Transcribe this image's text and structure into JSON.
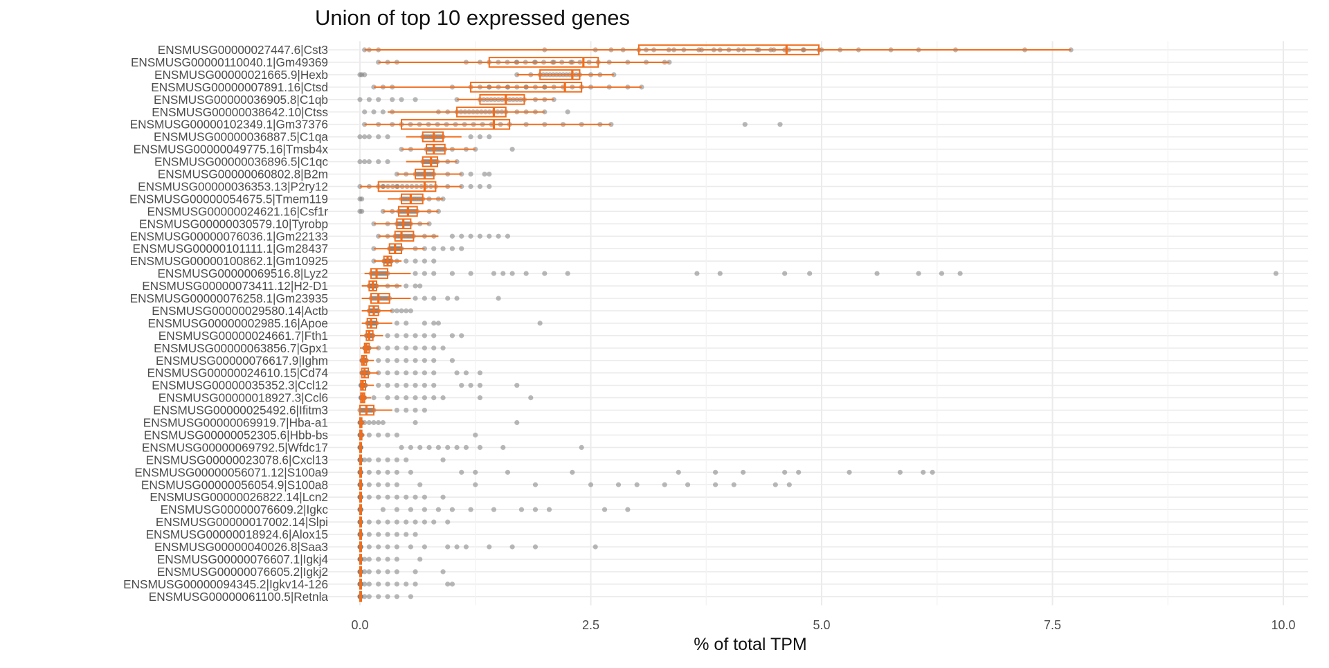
{
  "chart_data": {
    "type": "boxplot-with-points",
    "title": "Union of top 10 expressed genes",
    "xlabel": "% of total TPM",
    "ylabel": "",
    "xlim": [
      -0.45,
      10.3
    ],
    "x_ticks": [
      0.0,
      2.5,
      5.0,
      7.5,
      10.0
    ],
    "x_tick_labels": [
      "0.0",
      "2.5",
      "5.0",
      "7.5",
      "10.0"
    ],
    "orientation": "horizontal",
    "grid": true,
    "colors": {
      "box": "#f26d1b",
      "points": "#7f7f7f",
      "grid": "#ebebeb"
    },
    "genes": [
      {
        "name": "ENSMUSG00000027447.6|Cst3",
        "q1": 3.02,
        "median": 4.62,
        "q3": 4.97,
        "wlo": 0.05,
        "whi": 7.7,
        "out": [
          0.05,
          0.1,
          0.2,
          2.0,
          2.55,
          2.72,
          2.85,
          3.1,
          3.4,
          3.7,
          3.9,
          4.1,
          4.3,
          4.45,
          4.6,
          4.8,
          5.0,
          5.2,
          5.4,
          5.75,
          6.05,
          6.45,
          7.2,
          7.7
        ]
      },
      {
        "name": "ENSMUSG00000110040.1|Gm49369",
        "q1": 1.4,
        "median": 2.42,
        "q3": 2.58,
        "wlo": 0.2,
        "whi": 3.35,
        "out": [
          0.2,
          0.3,
          0.4,
          1.15,
          1.3,
          1.7,
          1.9,
          2.1,
          2.3,
          2.7,
          2.9,
          3.1,
          3.3,
          3.35
        ]
      },
      {
        "name": "ENSMUSG00000021665.9|Hexb",
        "q1": 1.95,
        "median": 2.3,
        "q3": 2.38,
        "wlo": 1.7,
        "whi": 2.75,
        "out": [
          0.0,
          0.02,
          0.05,
          1.7,
          1.85,
          2.5,
          2.6,
          2.75
        ]
      },
      {
        "name": "ENSMUSG00000007891.16|Ctsd",
        "q1": 1.2,
        "median": 2.22,
        "q3": 2.4,
        "wlo": 0.15,
        "whi": 3.05,
        "out": [
          0.15,
          0.25,
          0.35,
          1.0,
          1.4,
          1.6,
          1.8,
          2.0,
          2.5,
          2.7,
          2.9,
          3.05
        ]
      },
      {
        "name": "ENSMUSG00000036905.8|C1qb",
        "q1": 1.3,
        "median": 1.58,
        "q3": 1.78,
        "wlo": 1.05,
        "whi": 2.1,
        "out": [
          0.0,
          0.1,
          0.2,
          0.35,
          0.45,
          0.6,
          1.05,
          1.9,
          2.0,
          2.1
        ]
      },
      {
        "name": "ENSMUSG00000038642.10|Ctss",
        "q1": 1.05,
        "median": 1.45,
        "q3": 1.58,
        "wlo": 0.3,
        "whi": 2.0,
        "out": [
          0.05,
          0.15,
          0.25,
          0.35,
          0.85,
          0.95,
          1.7,
          1.8,
          1.9,
          2.0,
          2.25
        ]
      },
      {
        "name": "ENSMUSG00000102349.1|Gm37376",
        "q1": 0.45,
        "median": 1.45,
        "q3": 1.62,
        "wlo": 0.05,
        "whi": 2.72,
        "out": [
          0.05,
          0.2,
          0.35,
          1.8,
          2.0,
          2.2,
          2.4,
          2.6,
          2.72,
          4.17,
          4.55
        ]
      },
      {
        "name": "ENSMUSG00000036887.5|C1qa",
        "q1": 0.68,
        "median": 0.8,
        "q3": 0.9,
        "wlo": 0.5,
        "whi": 1.1,
        "out": [
          0.0,
          0.05,
          0.1,
          0.2,
          0.3,
          1.2,
          1.3,
          1.4
        ]
      },
      {
        "name": "ENSMUSG00000049775.16|Tmsb4x",
        "q1": 0.72,
        "median": 0.8,
        "q3": 0.92,
        "wlo": 0.45,
        "whi": 1.25,
        "out": [
          0.45,
          0.55,
          1.0,
          1.15,
          1.25,
          1.65
        ]
      },
      {
        "name": "ENSMUSG00000036896.5|C1qc",
        "q1": 0.68,
        "median": 0.77,
        "q3": 0.84,
        "wlo": 0.5,
        "whi": 1.05,
        "out": [
          0.0,
          0.05,
          0.1,
          0.2,
          0.3,
          0.95,
          1.05
        ]
      },
      {
        "name": "ENSMUSG00000060802.8|B2m",
        "q1": 0.6,
        "median": 0.7,
        "q3": 0.8,
        "wlo": 0.4,
        "whi": 1.1,
        "out": [
          0.4,
          0.5,
          0.95,
          1.1,
          1.2,
          1.35,
          1.4
        ]
      },
      {
        "name": "ENSMUSG00000036353.13|P2ry12",
        "q1": 0.2,
        "median": 0.7,
        "q3": 0.82,
        "wlo": 0.0,
        "whi": 1.1,
        "out": [
          0.0,
          0.1,
          0.25,
          0.4,
          0.95,
          1.1,
          1.2,
          1.3,
          1.4
        ]
      },
      {
        "name": "ENSMUSG00000054675.5|Tmem119",
        "q1": 0.45,
        "median": 0.55,
        "q3": 0.68,
        "wlo": 0.3,
        "whi": 0.9,
        "out": [
          0.0,
          0.02,
          0.75,
          0.85,
          0.9
        ]
      },
      {
        "name": "ENSMUSG00000024621.16|Csf1r",
        "q1": 0.42,
        "median": 0.52,
        "q3": 0.62,
        "wlo": 0.25,
        "whi": 0.85,
        "out": [
          0.0,
          0.02,
          0.25,
          0.35,
          0.75,
          0.85
        ]
      },
      {
        "name": "ENSMUSG00000030579.10|Tyrobp",
        "q1": 0.4,
        "median": 0.47,
        "q3": 0.55,
        "wlo": 0.15,
        "whi": 0.75,
        "out": [
          0.15,
          0.3,
          0.65,
          0.75
        ]
      },
      {
        "name": "ENSMUSG00000076036.1|Gm22133",
        "q1": 0.38,
        "median": 0.45,
        "q3": 0.58,
        "wlo": 0.2,
        "whi": 0.85,
        "out": [
          0.2,
          0.3,
          0.7,
          0.8,
          1.0,
          1.1,
          1.2,
          1.3,
          1.4,
          1.5,
          1.6
        ]
      },
      {
        "name": "ENSMUSG00000101111.1|Gm28437",
        "q1": 0.32,
        "median": 0.38,
        "q3": 0.45,
        "wlo": 0.15,
        "whi": 0.7,
        "out": [
          0.15,
          0.6,
          0.7,
          0.8,
          0.9,
          1.0,
          1.1
        ]
      },
      {
        "name": "ENSMUSG00000100862.1|Gm10925",
        "q1": 0.26,
        "median": 0.3,
        "q3": 0.34,
        "wlo": 0.15,
        "whi": 0.45,
        "out": [
          0.15,
          0.4,
          0.5,
          0.6,
          0.7,
          0.8
        ]
      },
      {
        "name": "ENSMUSG00000069516.8|Lyz2",
        "q1": 0.12,
        "median": 0.18,
        "q3": 0.3,
        "wlo": 0.05,
        "whi": 0.55,
        "out": [
          0.6,
          0.7,
          0.8,
          1.0,
          1.2,
          1.45,
          1.55,
          1.65,
          1.8,
          2.0,
          2.25,
          3.65,
          3.9,
          4.6,
          4.87,
          5.6,
          6.05,
          6.3,
          6.5,
          9.92
        ]
      },
      {
        "name": "ENSMUSG00000073411.12|H2-D1",
        "q1": 0.1,
        "median": 0.14,
        "q3": 0.18,
        "wlo": 0.02,
        "whi": 0.45,
        "out": [
          0.3,
          0.4,
          0.5,
          0.6,
          0.65
        ]
      },
      {
        "name": "ENSMUSG00000076258.1|Gm23935",
        "q1": 0.12,
        "median": 0.2,
        "q3": 0.32,
        "wlo": 0.02,
        "whi": 0.55,
        "out": [
          0.6,
          0.7,
          0.8,
          0.95,
          1.05,
          1.5
        ]
      },
      {
        "name": "ENSMUSG00000029580.14|Actb",
        "q1": 0.1,
        "median": 0.15,
        "q3": 0.2,
        "wlo": 0.02,
        "whi": 0.35,
        "out": [
          0.35,
          0.4,
          0.45,
          0.5,
          0.55
        ]
      },
      {
        "name": "ENSMUSG00000002985.16|Apoe",
        "q1": 0.08,
        "median": 0.12,
        "q3": 0.18,
        "wlo": 0.02,
        "whi": 0.35,
        "out": [
          0.4,
          0.5,
          0.7,
          0.8,
          0.85,
          1.95
        ]
      },
      {
        "name": "ENSMUSG00000024661.7|Fth1",
        "q1": 0.07,
        "median": 0.1,
        "q3": 0.14,
        "wlo": 0.0,
        "whi": 0.25,
        "out": [
          0.3,
          0.4,
          0.5,
          0.6,
          0.7,
          0.8,
          1.0,
          1.1
        ]
      },
      {
        "name": "ENSMUSG00000063856.7|Gpx1",
        "q1": 0.05,
        "median": 0.07,
        "q3": 0.1,
        "wlo": 0.0,
        "whi": 0.2,
        "out": [
          0.2,
          0.3,
          0.4,
          0.5,
          0.6,
          0.7,
          0.8,
          0.9
        ]
      },
      {
        "name": "ENSMUSG00000076617.9|Ighm",
        "q1": 0.02,
        "median": 0.04,
        "q3": 0.07,
        "wlo": 0.0,
        "whi": 0.15,
        "out": [
          0.2,
          0.3,
          0.4,
          0.5,
          0.6,
          0.7,
          0.8,
          1.0
        ]
      },
      {
        "name": "ENSMUSG00000024610.15|Cd74",
        "q1": 0.02,
        "median": 0.05,
        "q3": 0.09,
        "wlo": 0.0,
        "whi": 0.2,
        "out": [
          0.2,
          0.3,
          0.4,
          0.5,
          0.6,
          0.7,
          0.8,
          1.05,
          1.15,
          1.3
        ]
      },
      {
        "name": "ENSMUSG00000035352.3|Ccl12",
        "q1": 0.01,
        "median": 0.03,
        "q3": 0.06,
        "wlo": 0.0,
        "whi": 0.15,
        "out": [
          0.2,
          0.3,
          0.4,
          0.5,
          0.6,
          0.7,
          0.8,
          1.1,
          1.2,
          1.3,
          1.7
        ]
      },
      {
        "name": "ENSMUSG00000018927.3|Ccl6",
        "q1": 0.01,
        "median": 0.03,
        "q3": 0.05,
        "wlo": 0.0,
        "whi": 0.12,
        "out": [
          0.15,
          0.3,
          0.4,
          0.5,
          0.6,
          0.7,
          0.8,
          0.9,
          1.3,
          1.85
        ]
      },
      {
        "name": "ENSMUSG00000025492.6|Ifitm3",
        "q1": 0.0,
        "median": 0.07,
        "q3": 0.15,
        "wlo": 0.0,
        "whi": 0.35,
        "out": [
          0.4,
          0.5,
          0.6,
          0.7
        ]
      },
      {
        "name": "ENSMUSG00000069919.7|Hba-a1",
        "q1": 0.0,
        "median": 0.01,
        "q3": 0.02,
        "wlo": 0.0,
        "whi": 0.05,
        "out": [
          0.05,
          0.1,
          0.15,
          0.2,
          0.25,
          0.6,
          1.7
        ]
      },
      {
        "name": "ENSMUSG00000052305.6|Hbb-bs",
        "q1": 0.0,
        "median": 0.01,
        "q3": 0.02,
        "wlo": 0.0,
        "whi": 0.05,
        "out": [
          0.1,
          0.2,
          0.3,
          0.4,
          1.25
        ]
      },
      {
        "name": "ENSMUSG00000069792.5|Wfdc17",
        "q1": 0.0,
        "median": 0.005,
        "q3": 0.01,
        "wlo": 0.0,
        "whi": 0.02,
        "out": [
          0.45,
          0.55,
          0.65,
          0.75,
          0.85,
          0.95,
          1.05,
          1.15,
          1.3,
          1.55,
          2.4
        ]
      },
      {
        "name": "ENSMUSG00000023078.6|Cxcl13",
        "q1": 0.0,
        "median": 0.005,
        "q3": 0.01,
        "wlo": 0.0,
        "whi": 0.02,
        "out": [
          0.05,
          0.1,
          0.2,
          0.3,
          0.4,
          0.5,
          0.9
        ]
      },
      {
        "name": "ENSMUSG00000056071.12|S100a9",
        "q1": 0.0,
        "median": 0.005,
        "q3": 0.01,
        "wlo": 0.0,
        "whi": 0.02,
        "out": [
          0.1,
          0.2,
          0.3,
          0.4,
          0.55,
          1.1,
          1.25,
          1.6,
          2.3,
          3.45,
          3.85,
          4.15,
          4.6,
          4.75,
          5.3,
          5.85,
          6.1,
          6.2
        ]
      },
      {
        "name": "ENSMUSG00000056054.9|S100a8",
        "q1": 0.0,
        "median": 0.005,
        "q3": 0.01,
        "wlo": 0.0,
        "whi": 0.02,
        "out": [
          0.1,
          0.2,
          0.3,
          0.4,
          0.65,
          1.25,
          1.9,
          2.5,
          2.8,
          3.0,
          3.3,
          3.55,
          3.85,
          4.05,
          4.5,
          4.65
        ]
      },
      {
        "name": "ENSMUSG00000026822.14|Lcn2",
        "q1": 0.0,
        "median": 0.005,
        "q3": 0.01,
        "wlo": 0.0,
        "whi": 0.02,
        "out": [
          0.1,
          0.2,
          0.3,
          0.4,
          0.5,
          0.6,
          0.7,
          0.9
        ]
      },
      {
        "name": "ENSMUSG00000076609.2|Igkc",
        "q1": 0.0,
        "median": 0.005,
        "q3": 0.01,
        "wlo": 0.0,
        "whi": 0.02,
        "out": [
          0.25,
          0.4,
          0.55,
          0.7,
          0.85,
          1.0,
          1.2,
          1.45,
          1.75,
          1.9,
          2.05,
          2.65,
          2.9
        ]
      },
      {
        "name": "ENSMUSG00000017002.14|Slpi",
        "q1": 0.0,
        "median": 0.005,
        "q3": 0.01,
        "wlo": 0.0,
        "whi": 0.02,
        "out": [
          0.1,
          0.2,
          0.3,
          0.4,
          0.5,
          0.6,
          0.7,
          0.8,
          0.95
        ]
      },
      {
        "name": "ENSMUSG00000018924.6|Alox15",
        "q1": 0.0,
        "median": 0.005,
        "q3": 0.01,
        "wlo": 0.0,
        "whi": 0.02,
        "out": [
          0.1,
          0.2,
          0.3,
          0.4,
          0.5,
          0.6
        ]
      },
      {
        "name": "ENSMUSG00000040026.8|Saa3",
        "q1": 0.0,
        "median": 0.005,
        "q3": 0.01,
        "wlo": 0.0,
        "whi": 0.02,
        "out": [
          0.1,
          0.2,
          0.3,
          0.4,
          0.55,
          0.7,
          0.95,
          1.05,
          1.15,
          1.4,
          1.65,
          1.9,
          2.55
        ]
      },
      {
        "name": "ENSMUSG00000076607.1|Igkj4",
        "q1": 0.0,
        "median": 0.005,
        "q3": 0.01,
        "wlo": 0.0,
        "whi": 0.02,
        "out": [
          0.05,
          0.1,
          0.2,
          0.3,
          0.4,
          0.65
        ]
      },
      {
        "name": "ENSMUSG00000076605.2|Igkj2",
        "q1": 0.0,
        "median": 0.005,
        "q3": 0.01,
        "wlo": 0.0,
        "whi": 0.02,
        "out": [
          0.05,
          0.1,
          0.2,
          0.3,
          0.4,
          0.6,
          0.9
        ]
      },
      {
        "name": "ENSMUSG00000094345.2|Igkv14-126",
        "q1": 0.0,
        "median": 0.005,
        "q3": 0.01,
        "wlo": 0.0,
        "whi": 0.02,
        "out": [
          0.05,
          0.1,
          0.2,
          0.3,
          0.4,
          0.5,
          0.6,
          0.95,
          1.0
        ]
      },
      {
        "name": "ENSMUSG00000061100.5|Retnla",
        "q1": 0.0,
        "median": 0.005,
        "q3": 0.01,
        "wlo": 0.0,
        "whi": 0.02,
        "out": [
          0.05,
          0.1,
          0.2,
          0.3,
          0.4,
          0.55
        ]
      }
    ]
  }
}
